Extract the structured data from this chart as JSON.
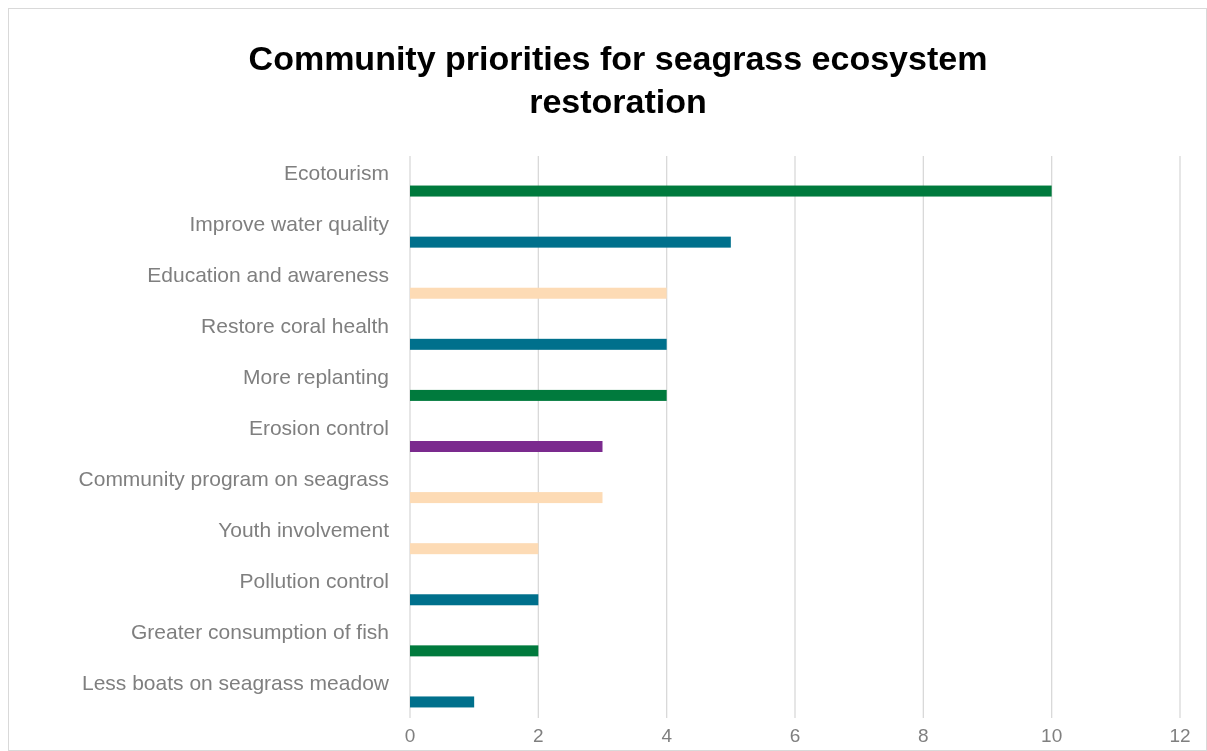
{
  "chart_data": {
    "type": "bar",
    "orientation": "horizontal",
    "title": "Community priorities for seagrass ecosystem restoration",
    "categories": [
      "Ecotourism",
      "Improve water quality",
      "Education and awareness",
      "Restore coral health",
      "More replanting",
      "Erosion control",
      "Community program on seagrass",
      "Youth involvement",
      "Pollution control",
      "Greater consumption of fish",
      "Less boats on seagrass meadow"
    ],
    "values": [
      10,
      5,
      4,
      4,
      4,
      3,
      3,
      2,
      2,
      2,
      1
    ],
    "colors": [
      "#007a3d",
      "#00708c",
      "#fddbb5",
      "#00708c",
      "#007a3d",
      "#7b2a8e",
      "#fddbb5",
      "#fddbb5",
      "#00708c",
      "#007a3d",
      "#00708c"
    ],
    "xlim": [
      0,
      12
    ],
    "xticks": [
      0,
      2,
      4,
      6,
      8,
      10,
      12
    ],
    "grid": "x"
  }
}
